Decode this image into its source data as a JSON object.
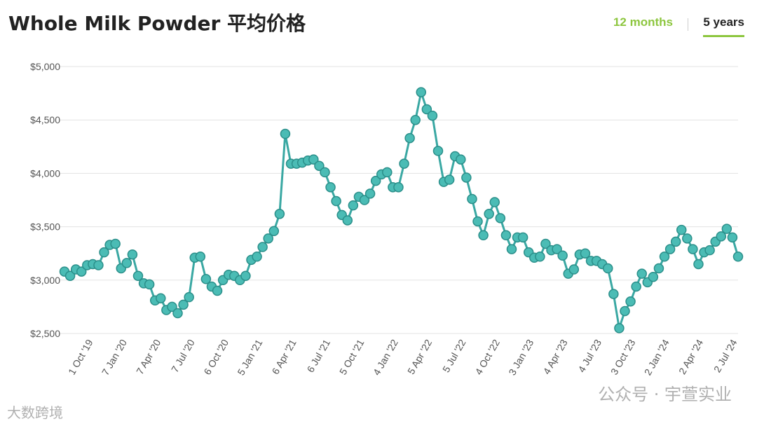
{
  "header": {
    "title": "Whole Milk Powder 平均价格",
    "tabs": [
      {
        "label": "12 months",
        "active": false
      },
      {
        "label": "5 years",
        "active": true
      }
    ]
  },
  "colors": {
    "line": "#3aa8a3",
    "marker_fill": "#4bbcb5",
    "active_tab": "#8dc63f"
  },
  "watermarks": {
    "bottom_left": "大数跨境",
    "bottom_right": "公众号 · 宇萱实业"
  },
  "chart_data": {
    "type": "line",
    "title": "Whole Milk Powder 平均价格",
    "xlabel": "",
    "ylabel": "",
    "ylim": [
      2500,
      5000
    ],
    "y_ticks": [
      2500,
      3000,
      3500,
      4000,
      4500,
      5000
    ],
    "y_tick_labels": [
      "$2,500",
      "$3,000",
      "$3,500",
      "$4,000",
      "$4,500",
      "$5,000"
    ],
    "x_tick_labels": [
      "1 Oct '19",
      "7 Jan '20",
      "7 Apr '20",
      "7 Jul '20",
      "6 Oct '20",
      "5 Jan '21",
      "6 Apr '21",
      "6 Jul '21",
      "5 Oct '21",
      "4 Jan '22",
      "5 Apr '22",
      "5 Jul '22",
      "4 Oct '22",
      "3 Jan '23",
      "4 Apr '23",
      "4 Jul '23",
      "3 Oct '23",
      "2 Jan '24",
      "2 Apr '24",
      "2 Jul '24"
    ],
    "grid": true,
    "legend": false,
    "series": [
      {
        "values": [
          3080,
          3040,
          3100,
          3080,
          3140,
          3150,
          3140,
          3260,
          3330,
          3340,
          3110,
          3160,
          3240,
          3040,
          2970,
          2960,
          2810,
          2830,
          2720,
          2750,
          2690,
          2770,
          2840,
          3210,
          3220,
          3010,
          2940,
          2900,
          3000,
          3050,
          3040,
          3000,
          3040,
          3190,
          3220,
          3310,
          3390,
          3460,
          3620,
          4370,
          4090,
          4090,
          4100,
          4120,
          4130,
          4070,
          4010,
          3870,
          3740,
          3610,
          3560,
          3700,
          3780,
          3750,
          3810,
          3930,
          3990,
          4010,
          3870,
          3870,
          4090,
          4330,
          4500,
          4760,
          4600,
          4540,
          4210,
          3920,
          3940,
          4160,
          4130,
          3960,
          3760,
          3550,
          3420,
          3620,
          3730,
          3580,
          3420,
          3290,
          3400,
          3400,
          3260,
          3210,
          3220,
          3340,
          3280,
          3290,
          3230,
          3060,
          3100,
          3240,
          3250,
          3180,
          3180,
          3150,
          3110,
          2870,
          2550,
          2710,
          2800,
          2940,
          3060,
          2980,
          3030,
          3110,
          3220,
          3290,
          3360,
          3470,
          3390,
          3290,
          3150,
          3260,
          3280,
          3360,
          3410,
          3480,
          3400,
          3220
        ]
      }
    ]
  }
}
